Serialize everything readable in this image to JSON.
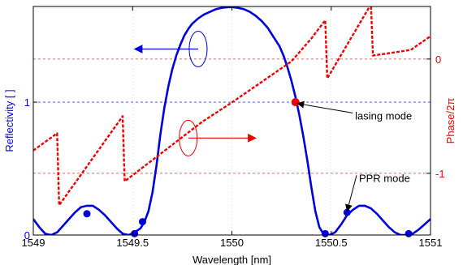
{
  "chart_data": {
    "type": "line",
    "xlabel": "Wavelength [nm]",
    "ylabel_left": "Reflectivity [ ]",
    "ylabel_right": "Phase/2π",
    "xlim": [
      1549,
      1551
    ],
    "ylim_left": [
      0,
      1.72
    ],
    "ylim_right": [
      -1.54,
      0.46
    ],
    "x_ticks": [
      {
        "value": 1549,
        "label": "1549"
      },
      {
        "value": 1549.5,
        "label": "1549.5"
      },
      {
        "value": 1550,
        "label": "1550"
      },
      {
        "value": 1550.5,
        "label": "1550.5"
      },
      {
        "value": 1551,
        "label": "1551"
      }
    ],
    "y_ticks_left": [
      {
        "value": 0,
        "label": "0"
      },
      {
        "value": 1,
        "label": "1"
      }
    ],
    "y_ticks_right": [
      {
        "value": 0,
        "label": "0"
      },
      {
        "value": -1,
        "label": "-1"
      }
    ],
    "grid": "dashed reference lines at reflectivity 1 and phase 0 and -1",
    "series": [
      {
        "role": "reflectivity",
        "axis": "left",
        "color": "#0000dd",
        "style": "solid",
        "x": [
          1549.0,
          1549.03,
          1549.06,
          1549.09,
          1549.12,
          1549.15,
          1549.18,
          1549.21,
          1549.24,
          1549.27,
          1549.3,
          1549.33,
          1549.36,
          1549.39,
          1549.42,
          1549.45,
          1549.48,
          1549.51,
          1549.54,
          1549.56,
          1549.58,
          1549.6,
          1549.62,
          1549.64,
          1549.66,
          1549.68,
          1549.7,
          1549.72,
          1549.74,
          1549.76,
          1549.78,
          1549.8,
          1549.83,
          1549.86,
          1549.89,
          1549.92,
          1549.95,
          1549.98,
          1550.0,
          1550.03,
          1550.06,
          1550.09,
          1550.12,
          1550.15,
          1550.18,
          1550.21,
          1550.24,
          1550.26,
          1550.28,
          1550.3,
          1550.32,
          1550.34,
          1550.36,
          1550.38,
          1550.4,
          1550.42,
          1550.44,
          1550.46,
          1550.49,
          1550.52,
          1550.55,
          1550.58,
          1550.61,
          1550.64,
          1550.67,
          1550.7,
          1550.73,
          1550.76,
          1550.79,
          1550.82,
          1550.85,
          1550.88,
          1550.91,
          1550.94,
          1550.97,
          1551.0
        ],
        "y": [
          0.12,
          0.06,
          0.01,
          0.0,
          0.02,
          0.07,
          0.12,
          0.17,
          0.21,
          0.22,
          0.22,
          0.19,
          0.15,
          0.1,
          0.05,
          0.01,
          0.0,
          0.02,
          0.05,
          0.1,
          0.18,
          0.32,
          0.52,
          0.76,
          0.96,
          1.12,
          1.25,
          1.35,
          1.43,
          1.5,
          1.55,
          1.59,
          1.63,
          1.66,
          1.68,
          1.7,
          1.71,
          1.715,
          1.715,
          1.71,
          1.7,
          1.68,
          1.65,
          1.61,
          1.56,
          1.49,
          1.42,
          1.35,
          1.26,
          1.16,
          1.04,
          0.9,
          0.74,
          0.56,
          0.36,
          0.18,
          0.06,
          0.01,
          0.0,
          0.02,
          0.08,
          0.15,
          0.19,
          0.22,
          0.22,
          0.2,
          0.16,
          0.11,
          0.06,
          0.02,
          0.0,
          0.0,
          0.01,
          0.04,
          0.08,
          0.12
        ]
      },
      {
        "role": "phase",
        "axis": "right",
        "color": "#ee0000",
        "style": "dashed",
        "x": [
          1549.0,
          1549.12,
          1549.13,
          1549.45,
          1549.46,
          1549.7,
          1549.85,
          1550.0,
          1550.15,
          1550.3,
          1550.4,
          1550.47,
          1550.48,
          1550.7,
          1550.71,
          1550.9,
          1551.0
        ],
        "y": [
          -0.8,
          -0.65,
          -1.28,
          -0.5,
          -1.07,
          -0.75,
          -0.55,
          -0.38,
          -0.2,
          -0.02,
          0.18,
          0.34,
          -0.17,
          0.48,
          0.03,
          0.08,
          0.2
        ]
      }
    ],
    "markers": {
      "reflectivity_points": [
        {
          "x": 1549.27,
          "y": 0.16
        },
        {
          "x": 1549.51,
          "y": 0.01
        },
        {
          "x": 1549.55,
          "y": 0.1
        },
        {
          "x": 1550.32,
          "y": 1.0
        },
        {
          "x": 1550.47,
          "y": 0.01
        },
        {
          "x": 1550.58,
          "y": 0.17
        },
        {
          "x": 1550.89,
          "y": 0.01
        }
      ]
    },
    "annotations": [
      {
        "text": "lasing mode",
        "x": 1550.62,
        "y": 0.87,
        "arrow_to": {
          "x": 1550.33,
          "y": 0.99
        }
      },
      {
        "text": "PPR mode",
        "x": 1550.64,
        "y": 0.4,
        "arrow_to": {
          "x": 1550.58,
          "y": 0.18
        }
      }
    ],
    "axis_indicators": [
      {
        "axis": "left",
        "ellipse": {
          "x": 1549.83,
          "y": 1.4
        },
        "arrow_from": {
          "x": 1549.83,
          "y": 1.4
        },
        "arrow_to": {
          "x": 1549.51,
          "y": 1.4
        },
        "color": "#0000dd"
      },
      {
        "axis": "right",
        "ellipse": {
          "x": 1549.78,
          "y": 0.73
        },
        "arrow_from": {
          "x": 1549.78,
          "y": 0.73
        },
        "arrow_to": {
          "x": 1550.12,
          "y": 0.73
        },
        "color": "#ee0000"
      }
    ]
  }
}
